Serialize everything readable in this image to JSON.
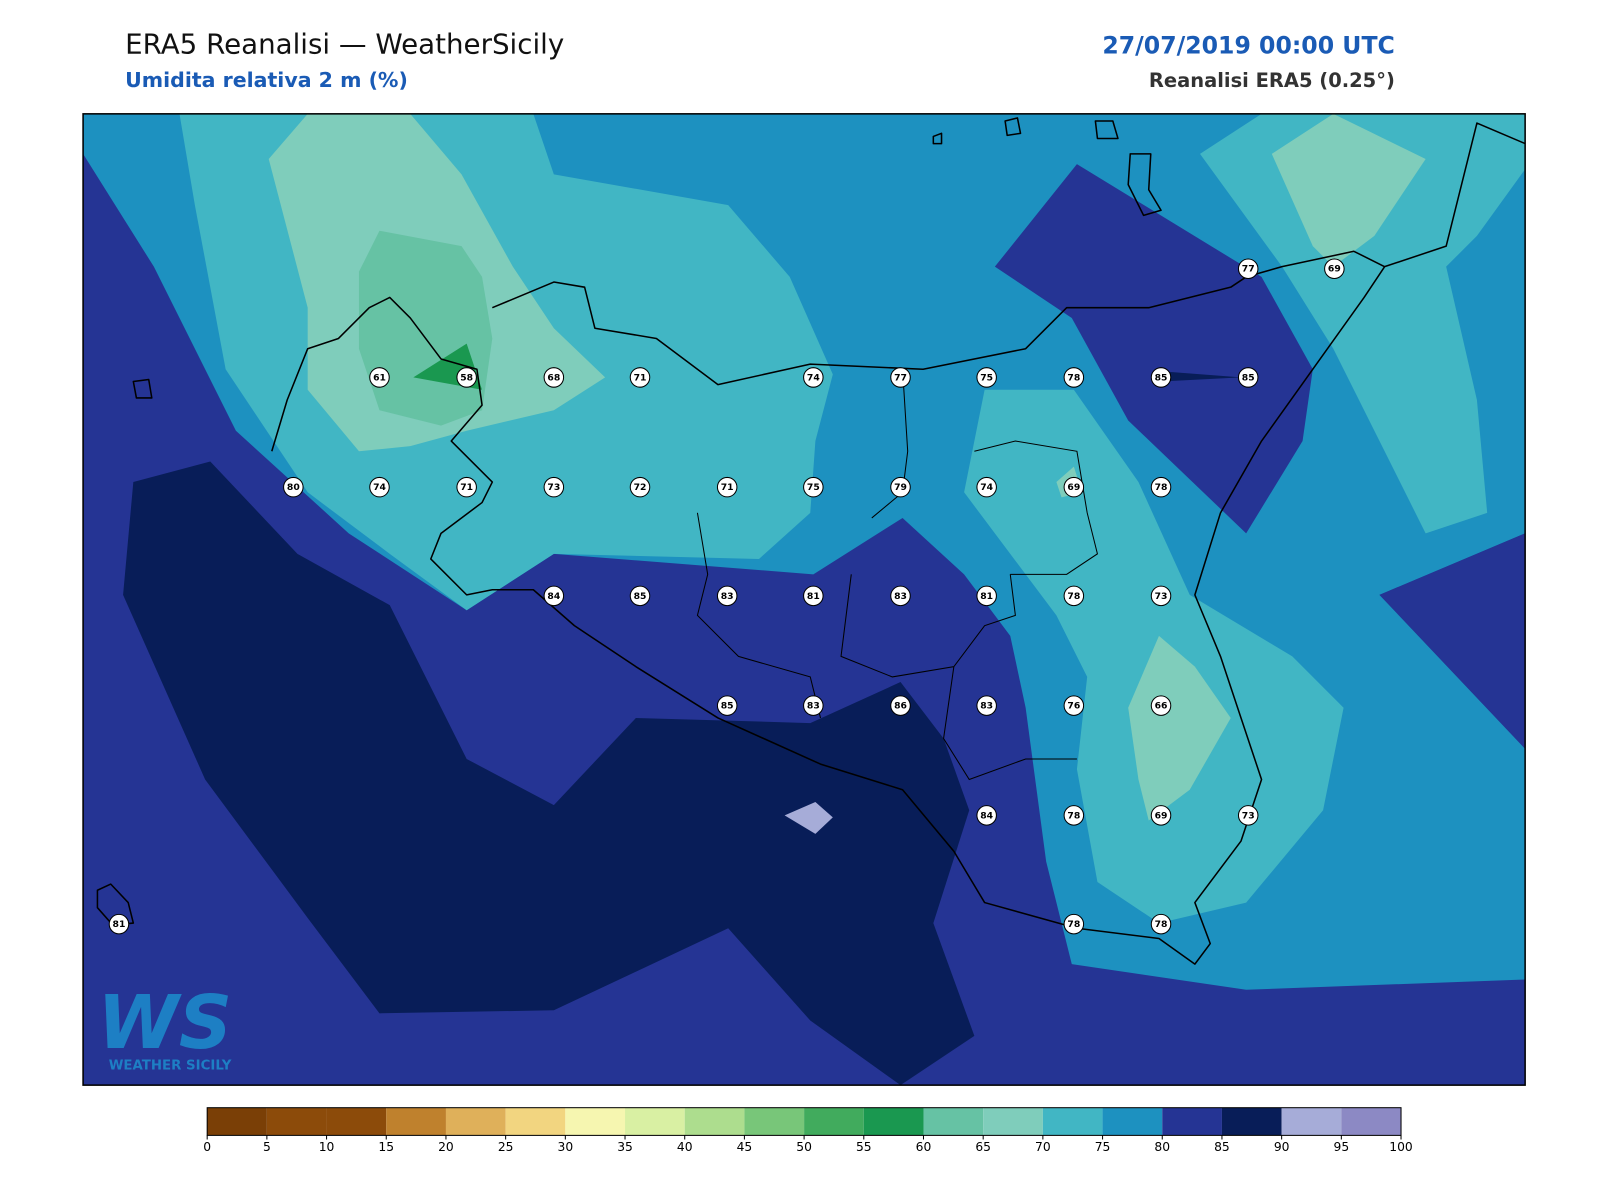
{
  "header": {
    "title": "ERA5 Reanalisi — WeatherSicily",
    "subtitle": "Umidita relativa 2 m (%)",
    "datetime": "27/07/2019 00:00 UTC",
    "source": "Reanalisi ERA5 (0.25°)"
  },
  "map": {
    "stations": [
      77,
      69,
      61,
      58,
      68,
      71,
      74,
      77,
      75,
      78,
      85,
      85,
      80,
      74,
      71,
      73,
      72,
      71,
      75,
      79,
      74,
      69,
      78,
      84,
      85,
      83,
      81,
      83,
      81,
      78,
      73,
      85,
      83,
      86,
      83,
      76,
      66,
      84,
      78,
      69,
      73,
      81,
      78,
      78
    ]
  },
  "colorbar": {
    "ticks": [
      0,
      5,
      10,
      15,
      20,
      25,
      30,
      35,
      40,
      45,
      50,
      55,
      60,
      65,
      70,
      75,
      80,
      85,
      90,
      95,
      100
    ],
    "colors": [
      "#7a3f06",
      "#8c4b0a",
      "#8c4b0a",
      "#bf812d",
      "#dfb05a",
      "#f2d580",
      "#f6f6b0",
      "#d9f0a3",
      "#addd8e",
      "#78c679",
      "#41ab5d",
      "#1a9850",
      "#66c2a4",
      "#7fcdbb",
      "#41b6c4",
      "#1d91c0",
      "#253494",
      "#081d58",
      "#a6acd8",
      "#8c89c4"
    ]
  },
  "logo": {
    "mark": "WS",
    "text": "WEATHER SICILY"
  }
}
